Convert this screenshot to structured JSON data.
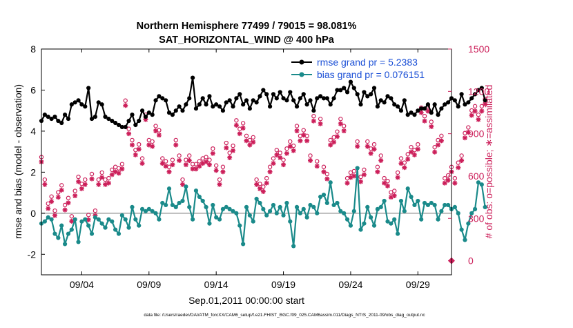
{
  "chart_data": {
    "type": "line",
    "title_line1": "Northern Hemisphere 77499 / 79015 = 98.081%",
    "title_line2": "SAT_HORIZONTAL_WIND @ 400 hPa",
    "xlabel": "Sep.01,2011 00:00:00 start",
    "ylabel_left": "rmse and bias (model - observation)",
    "ylabel_right": "# of obs: o=possible; ∗=assimilated",
    "footnote": "data file: /Users/raeder/DAI/ATM_forcXX/CAM6_setup/f.e21.FHIST_BGC.f09_025.CAM6assim.011/Diags_NTrS_2011-09/obs_diag_output.nc",
    "xlim_days": [
      1,
      31.5
    ],
    "x_ticks": [
      {
        "day": 4,
        "label": "09/04"
      },
      {
        "day": 9,
        "label": "09/09"
      },
      {
        "day": 14,
        "label": "09/14"
      },
      {
        "day": 19,
        "label": "09/19"
      },
      {
        "day": 24,
        "label": "09/24"
      },
      {
        "day": 29,
        "label": "09/29"
      }
    ],
    "ylim_left": [
      -3,
      8
    ],
    "yticks_left": [
      "8",
      "6",
      "4",
      "2",
      "0",
      "-2"
    ],
    "ytick_values_left": [
      8,
      6,
      4,
      2,
      0,
      -2
    ],
    "ylim_right": [
      -100,
      1500
    ],
    "yticks_right": [
      "1500",
      "1200",
      "900",
      "600",
      "300",
      "0"
    ],
    "ytick_values_right": [
      1500,
      1200,
      900,
      600,
      300,
      0
    ],
    "legend": [
      {
        "label": "rmse grand pr = 5.2383",
        "color": "#000000"
      },
      {
        "label": "bias grand pr = 0.076151",
        "color": "#1a8a8a"
      }
    ],
    "colors": {
      "rmse": "#000000",
      "bias": "#1a8a8a",
      "obs": "#cc1f5a",
      "zero_line": "#bbbbbb",
      "right_axis": "#cc1f5a",
      "legend_text": "#1a4fd6"
    },
    "x_start_day": 1,
    "x_step_days": 0.25,
    "series": [
      {
        "name": "rmse",
        "values": [
          4.5,
          4.8,
          4.7,
          4.6,
          4.7,
          4.5,
          4.4,
          4.8,
          4.6,
          5.3,
          5.4,
          5.5,
          5.3,
          5.2,
          6.1,
          4.6,
          4.7,
          5.4,
          5.3,
          4.7,
          4.6,
          4.5,
          4.4,
          4.3,
          4.2,
          4.2,
          4.5,
          4.8,
          4.3,
          4.5,
          5.0,
          4.7,
          4.9,
          4.8,
          5.5,
          5.7,
          5.6,
          5.5,
          4.9,
          4.8,
          5.0,
          5.2,
          5.0,
          5.3,
          5.6,
          6.6,
          5.1,
          5.3,
          5.6,
          5.3,
          5.7,
          5.2,
          5.3,
          5.2,
          5.0,
          5.4,
          5.5,
          5.2,
          5.6,
          5.8,
          5.3,
          5.5,
          5.1,
          5.5,
          5.4,
          5.7,
          6.0,
          5.8,
          5.2,
          5.8,
          5.6,
          5.9,
          5.6,
          5.5,
          5.9,
          5.5,
          5.2,
          5.6,
          5.8,
          5.3,
          5.5,
          5.0,
          5.6,
          5.7,
          5.6,
          5.6,
          5.3,
          5.6,
          6.0,
          6.0,
          6.1,
          5.9,
          6.4,
          6.1,
          5.8,
          5.3,
          5.9,
          5.7,
          5.8,
          6.1,
          5.2,
          5.5,
          5.4,
          5.7,
          5.6,
          5.3,
          5.2,
          5.0,
          5.5,
          4.8,
          4.9,
          4.8,
          5.0,
          5.1,
          5.1,
          5.3,
          4.9,
          5.3,
          4.8,
          5.1,
          5.3,
          5.4,
          5.6,
          5.5,
          5.2,
          5.8,
          5.3,
          5.4,
          5.6,
          5.8,
          6.0,
          6.1,
          5.5
        ]
      },
      {
        "name": "bias",
        "values": [
          -0.5,
          -0.4,
          -0.2,
          -0.3,
          -1.0,
          -1.2,
          -0.6,
          -1.5,
          -1.0,
          -0.8,
          -0.3,
          -1.4,
          -0.4,
          -0.3,
          -0.6,
          -1.0,
          -0.2,
          -0.3,
          -0.5,
          -0.7,
          -0.3,
          -0.4,
          -0.8,
          -1.0,
          -0.1,
          -0.3,
          -0.7,
          0.3,
          -0.3,
          -0.6,
          0.2,
          0.1,
          0.2,
          0.1,
          0.0,
          -0.3,
          0.5,
          0.4,
          1.2,
          0.4,
          0.3,
          0.5,
          0.6,
          1.3,
          0.3,
          -0.3,
          1.1,
          0.8,
          0.6,
          0.3,
          -0.5,
          0.4,
          -0.2,
          -0.3,
          0.2,
          0.3,
          0.2,
          0.1,
          0.0,
          -0.6,
          -1.5,
          0.3,
          -0.1,
          -0.4,
          0.7,
          0.5,
          0.2,
          -0.1,
          0.1,
          0.4,
          0.0,
          0.3,
          -0.1,
          0.5,
          -0.4,
          -1.6,
          0.3,
          0.0,
          0.2,
          -0.2,
          0.4,
          0.3,
          0.0,
          0.8,
          0.9,
          0.5,
          1.5,
          0.4,
          0.5,
          0.1,
          0.0,
          -0.3,
          -0.6,
          0.1,
          2.2,
          -0.8,
          -0.5,
          0.3,
          -0.2,
          -0.6,
          0.2,
          0.3,
          0.6,
          -0.4,
          -0.5,
          -0.3,
          -1.0,
          0.6,
          0.1,
          1.2,
          0.8,
          0.4,
          0.6,
          -0.3,
          0.5,
          0.4,
          0.5,
          0.4,
          -0.3,
          0.1,
          0.4,
          0.4,
          0.2,
          0.3,
          0.0,
          -0.8,
          -1.3,
          -0.5,
          0.0,
          0.2,
          1.5,
          1.4,
          0.3
        ]
      },
      {
        "name": "obs_possible",
        "values": [
          710,
          550,
          380,
          430,
          330,
          460,
          510,
          370,
          420,
          290,
          470,
          570,
          520,
          550,
          300,
          590,
          330,
          550,
          600,
          550,
          560,
          620,
          640,
          630,
          660,
          1110,
          910,
          830,
          760,
          800,
          700,
          1010,
          830,
          820,
          930,
          900,
          700,
          680,
          640,
          690,
          830,
          720,
          550,
          690,
          720,
          660,
          660,
          680,
          700,
          710,
          690,
          770,
          650,
          550,
          640,
          810,
          740,
          790,
          970,
          910,
          950,
          860,
          830,
          850,
          550,
          520,
          500,
          560,
          640,
          700,
          760,
          740,
          690,
          770,
          820,
          790,
          930,
          860,
          900,
          860,
          720,
          1000,
          680,
          980,
          640,
          590,
          830,
          850,
          890,
          980,
          930,
          560,
          600,
          610,
          820,
          570,
          620,
          820,
          770,
          800,
          640,
          720,
          560,
          540,
          460,
          470,
          600,
          700,
          670,
          730,
          780,
          760,
          800,
          1060,
          1000,
          1070,
          960,
          780,
          830,
          860,
          560,
          580,
          640,
          560,
          670,
          720,
          880,
          920,
          1040,
          1070,
          1010,
          1070,
          1120
        ]
      },
      {
        "name": "obs_assimilated",
        "values": [
          700,
          540,
          370,
          420,
          320,
          450,
          500,
          360,
          410,
          280,
          460,
          560,
          510,
          540,
          290,
          580,
          320,
          540,
          590,
          540,
          550,
          610,
          630,
          620,
          650,
          1100,
          900,
          820,
          750,
          790,
          690,
          1000,
          820,
          810,
          920,
          890,
          690,
          670,
          630,
          680,
          820,
          710,
          540,
          680,
          710,
          650,
          650,
          670,
          690,
          700,
          680,
          760,
          640,
          540,
          630,
          800,
          730,
          780,
          960,
          900,
          940,
          850,
          820,
          840,
          540,
          510,
          490,
          550,
          630,
          690,
          750,
          730,
          680,
          760,
          810,
          780,
          920,
          850,
          890,
          850,
          710,
          990,
          670,
          970,
          630,
          580,
          820,
          840,
          880,
          970,
          920,
          550,
          590,
          600,
          810,
          560,
          610,
          810,
          760,
          790,
          630,
          710,
          550,
          530,
          450,
          460,
          590,
          690,
          660,
          720,
          770,
          750,
          790,
          1050,
          990,
          1060,
          950,
          770,
          820,
          850,
          550,
          570,
          630,
          550,
          660,
          710,
          870,
          910,
          1030,
          1060,
          1000,
          1060,
          1110
        ]
      }
    ],
    "obs_outlier": {
      "day": 31.5,
      "value": 0
    }
  }
}
